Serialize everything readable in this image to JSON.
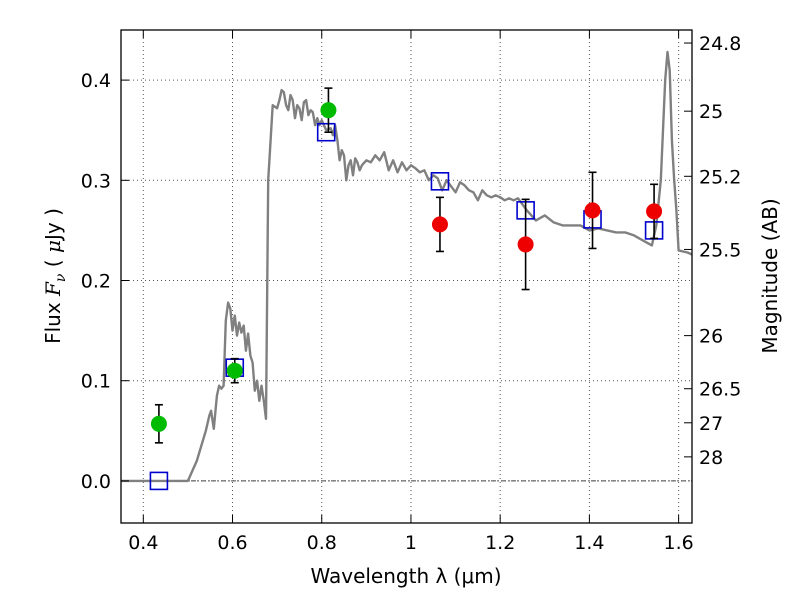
{
  "chart_data": {
    "type": "scatter",
    "xlabel": "Wavelength  λ (μm)",
    "ylabel_left": "Flux  F_ν  ( μJy )",
    "ylabel_right": "Magnitude (AB)",
    "xlim": [
      0.35,
      1.63
    ],
    "ylim": [
      -0.042,
      0.45
    ],
    "grid": true,
    "x_ticks": [
      {
        "value": 0.4,
        "label": "0.4"
      },
      {
        "value": 0.6,
        "label": "0.6"
      },
      {
        "value": 0.8,
        "label": "0.8"
      },
      {
        "value": 1.0,
        "label": "1"
      },
      {
        "value": 1.2,
        "label": "1.2"
      },
      {
        "value": 1.4,
        "label": "1.4"
      },
      {
        "value": 1.6,
        "label": "1.6"
      }
    ],
    "y_ticks": [
      {
        "value": 0.0,
        "label": "0.0"
      },
      {
        "value": 0.1,
        "label": "0.1"
      },
      {
        "value": 0.2,
        "label": "0.2"
      },
      {
        "value": 0.3,
        "label": "0.3"
      },
      {
        "value": 0.4,
        "label": "0.4"
      }
    ],
    "right_ticks": [
      {
        "flux": 0.437,
        "label": "24.8"
      },
      {
        "flux": 0.369,
        "label": "25"
      },
      {
        "flux": 0.304,
        "label": "25.2"
      },
      {
        "flux": 0.231,
        "label": "25.5"
      },
      {
        "flux": 0.145,
        "label": "26"
      },
      {
        "flux": 0.092,
        "label": "26.5"
      },
      {
        "flux": 0.058,
        "label": "27"
      },
      {
        "flux": 0.024,
        "label": "28"
      }
    ],
    "colors": {
      "model_spectrum": "#808080",
      "green_points": "#00bb00",
      "red_points": "#ee0000",
      "model_boxes": "#0000cc",
      "error_bars": "#000000",
      "grid": "#555555"
    },
    "series": [
      {
        "type": "line",
        "x": [
          0.35,
          0.5,
          0.52,
          0.54,
          0.548,
          0.552,
          0.558,
          0.565,
          0.57,
          0.575,
          0.58,
          0.585,
          0.59,
          0.595,
          0.6,
          0.605,
          0.61,
          0.615,
          0.62,
          0.625,
          0.63,
          0.635,
          0.64,
          0.645,
          0.65,
          0.655,
          0.66,
          0.665,
          0.67,
          0.675,
          0.68,
          0.69,
          0.7,
          0.705,
          0.71,
          0.715,
          0.72,
          0.725,
          0.73,
          0.735,
          0.74,
          0.745,
          0.75,
          0.755,
          0.76,
          0.765,
          0.77,
          0.775,
          0.78,
          0.785,
          0.79,
          0.795,
          0.8,
          0.81,
          0.82,
          0.825,
          0.83,
          0.835,
          0.84,
          0.845,
          0.85,
          0.855,
          0.86,
          0.865,
          0.87,
          0.875,
          0.88,
          0.885,
          0.89,
          0.9,
          0.91,
          0.92,
          0.93,
          0.94,
          0.95,
          0.96,
          0.97,
          0.98,
          0.99,
          1.0,
          1.01,
          1.02,
          1.03,
          1.04,
          1.05,
          1.06,
          1.07,
          1.08,
          1.1,
          1.11,
          1.12,
          1.13,
          1.14,
          1.15,
          1.16,
          1.17,
          1.18,
          1.19,
          1.2,
          1.21,
          1.22,
          1.23,
          1.24,
          1.26,
          1.28,
          1.3,
          1.32,
          1.34,
          1.36,
          1.38,
          1.4,
          1.42,
          1.44,
          1.46,
          1.48,
          1.5,
          1.52,
          1.54,
          1.55,
          1.56,
          1.565,
          1.57,
          1.575,
          1.58,
          1.585,
          1.59,
          1.595,
          1.6,
          1.62,
          1.63
        ],
        "y": [
          0.0,
          0.0,
          0.02,
          0.05,
          0.065,
          0.07,
          0.052,
          0.085,
          0.095,
          0.092,
          0.095,
          0.16,
          0.178,
          0.172,
          0.15,
          0.165,
          0.145,
          0.158,
          0.148,
          0.155,
          0.13,
          0.147,
          0.125,
          0.118,
          0.09,
          0.1,
          0.08,
          0.095,
          0.08,
          0.062,
          0.3,
          0.375,
          0.372,
          0.38,
          0.39,
          0.388,
          0.375,
          0.37,
          0.385,
          0.38,
          0.362,
          0.375,
          0.372,
          0.36,
          0.378,
          0.38,
          0.365,
          0.37,
          0.368,
          0.355,
          0.362,
          0.355,
          0.36,
          0.35,
          0.352,
          0.345,
          0.355,
          0.34,
          0.32,
          0.33,
          0.325,
          0.3,
          0.315,
          0.32,
          0.305,
          0.322,
          0.318,
          0.31,
          0.315,
          0.32,
          0.318,
          0.325,
          0.32,
          0.328,
          0.31,
          0.32,
          0.308,
          0.318,
          0.31,
          0.315,
          0.312,
          0.308,
          0.31,
          0.3,
          0.305,
          0.302,
          0.29,
          0.3,
          0.288,
          0.298,
          0.295,
          0.29,
          0.288,
          0.28,
          0.29,
          0.285,
          0.283,
          0.285,
          0.283,
          0.28,
          0.282,
          0.28,
          0.282,
          0.27,
          0.26,
          0.265,
          0.258,
          0.255,
          0.255,
          0.255,
          0.25,
          0.252,
          0.25,
          0.248,
          0.248,
          0.245,
          0.24,
          0.235,
          0.255,
          0.3,
          0.35,
          0.4,
          0.428,
          0.41,
          0.34,
          0.3,
          0.27,
          0.23,
          0.228,
          0.226
        ]
      },
      {
        "type": "points",
        "x": [
          0.435,
          0.605,
          0.815
        ],
        "y": [
          0.057,
          0.11,
          0.37
        ],
        "err": [
          0.019,
          0.012,
          0.022
        ]
      },
      {
        "type": "points",
        "x": [
          1.065,
          1.257,
          1.407,
          1.545
        ],
        "y": [
          0.256,
          0.236,
          0.27,
          0.269
        ],
        "err": [
          0.027,
          0.045,
          0.038,
          0.027
        ]
      },
      {
        "type": "boxes",
        "x": [
          0.435,
          0.605,
          0.81,
          1.065,
          1.257,
          1.407,
          1.545
        ],
        "y": [
          0.0,
          0.113,
          0.348,
          0.299,
          0.27,
          0.261,
          0.25
        ]
      }
    ]
  }
}
